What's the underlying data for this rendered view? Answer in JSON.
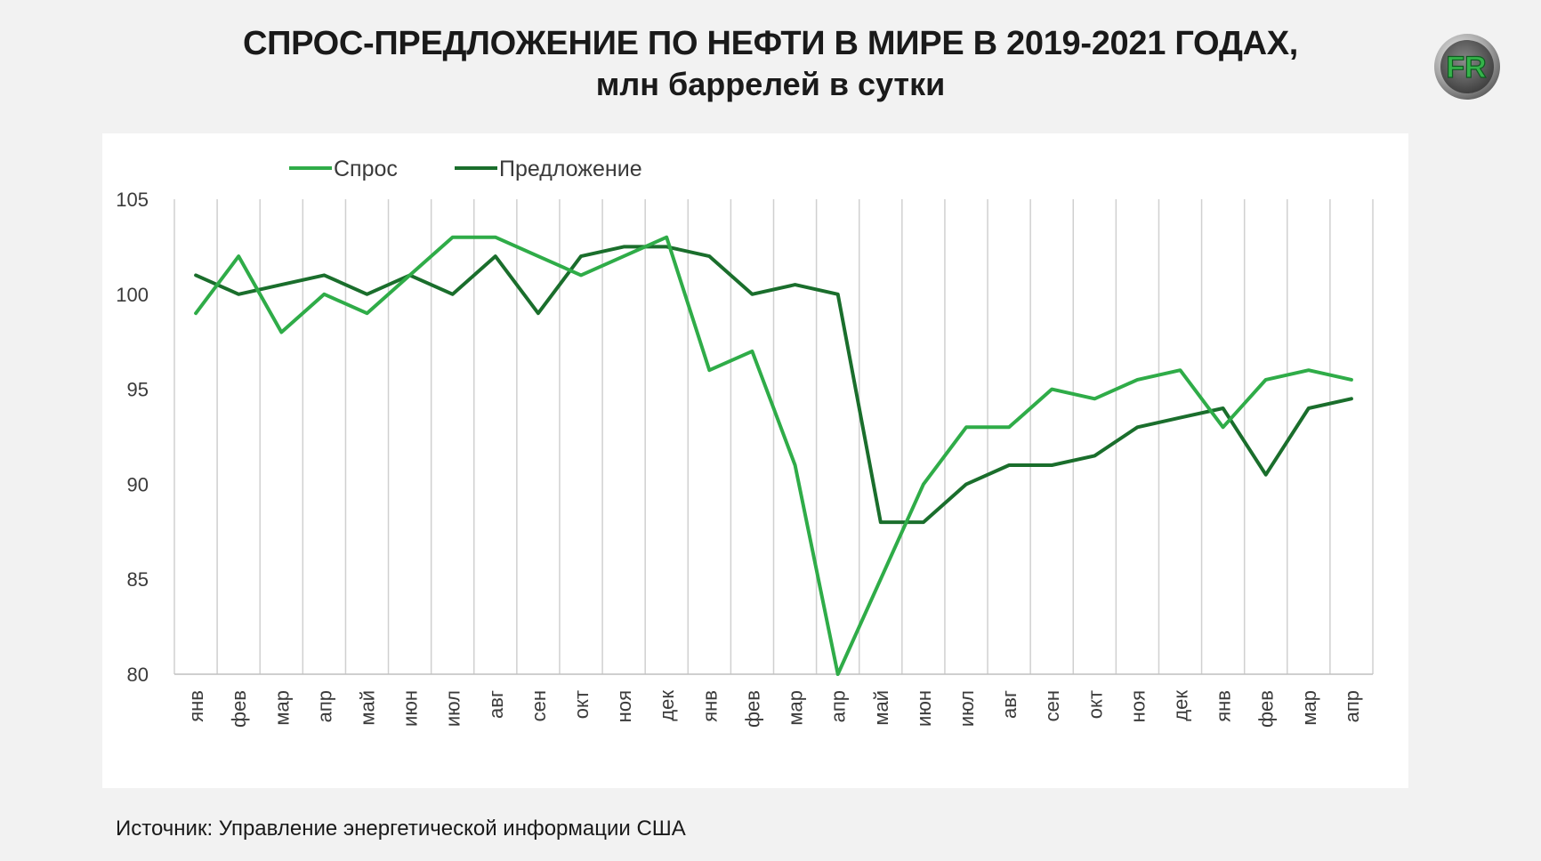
{
  "title_line1": "СПРОС-ПРЕДЛОЖЕНИЕ ПО НЕФТИ В МИРЕ В 2019-2021 ГОДАХ,",
  "title_line2": "млн баррелей в сутки",
  "source": "Источник: Управление энергетической информации США",
  "logo": {
    "icon": "fr-logo-icon",
    "text": "FR"
  },
  "colors": {
    "demand": "#2fac48",
    "supply": "#1a6e2c",
    "grid": "#d0d0d0",
    "axis": "#bfbfbf"
  },
  "chart_data": {
    "type": "line",
    "ylim": [
      80,
      105
    ],
    "yticks": [
      80,
      85,
      90,
      95,
      100,
      105
    ],
    "grid": "vertical",
    "legend_position": "top",
    "categories": [
      "янв",
      "фев",
      "мар",
      "апр",
      "май",
      "июн",
      "июл",
      "авг",
      "сен",
      "окт",
      "ноя",
      "дек",
      "янв",
      "фев",
      "мар",
      "апр",
      "май",
      "июн",
      "июл",
      "авг",
      "сен",
      "окт",
      "ноя",
      "дек",
      "янв",
      "фев",
      "мар",
      "апр"
    ],
    "series": [
      {
        "name": "Спрос",
        "color": "#2fac48",
        "values": [
          99,
          102,
          98,
          100,
          99,
          101,
          103,
          103,
          102,
          101,
          102,
          103,
          96,
          97,
          91,
          80,
          85,
          90,
          93,
          93,
          95,
          94.5,
          95.5,
          96,
          93,
          95.5,
          96,
          95.5
        ]
      },
      {
        "name": "Предложение",
        "color": "#1a6e2c",
        "values": [
          101,
          100,
          100.5,
          101,
          100,
          101,
          100,
          102,
          99,
          102,
          102.5,
          102.5,
          102,
          100,
          100.5,
          100,
          88,
          88,
          90,
          91,
          91,
          91.5,
          93,
          93.5,
          94,
          90.5,
          94,
          94.5
        ]
      }
    ]
  }
}
